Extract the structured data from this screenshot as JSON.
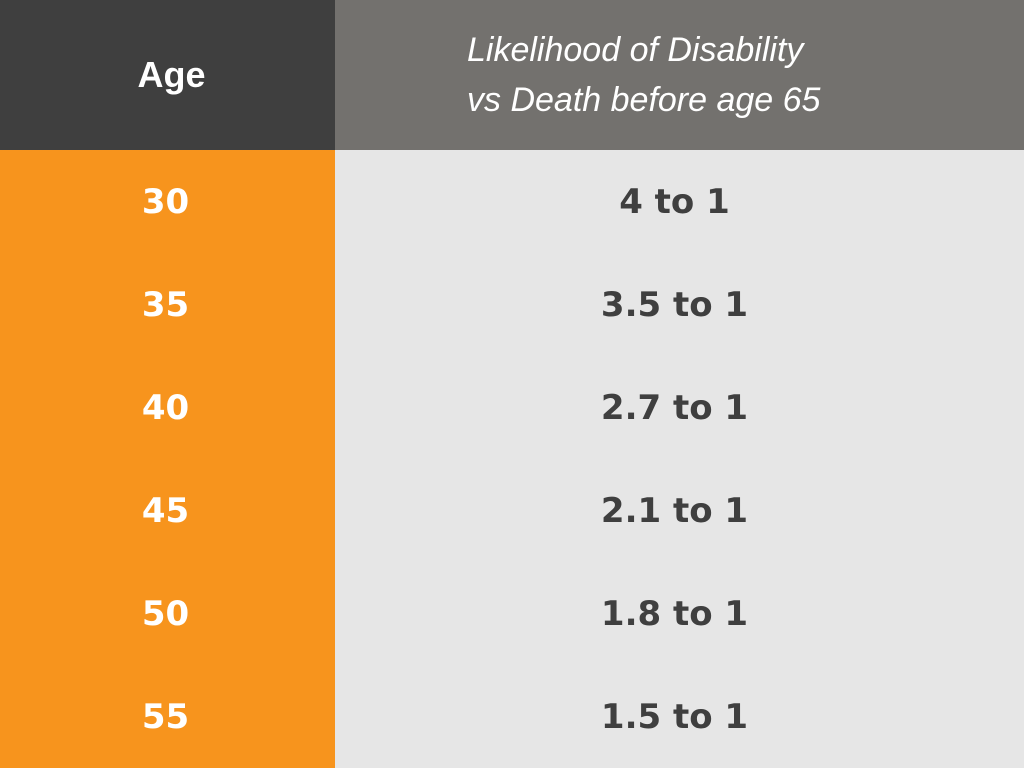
{
  "header": {
    "age_label": "Age",
    "likelihood_line1": "Likelihood of Disability",
    "likelihood_line2": "vs Death before age 65"
  },
  "rows": [
    {
      "age": "30",
      "ratio": "4 to 1"
    },
    {
      "age": "35",
      "ratio": "3.5 to 1"
    },
    {
      "age": "40",
      "ratio": "2.7 to 1"
    },
    {
      "age": "45",
      "ratio": "2.1 to 1"
    },
    {
      "age": "50",
      "ratio": "1.8 to 1"
    },
    {
      "age": "55",
      "ratio": "1.5 to 1"
    }
  ],
  "colors": {
    "age_header_bg": "#3f3f3f",
    "likelihood_header_bg": "#73716e",
    "age_column_bg": "#f7941d",
    "ratio_column_bg": "#e6e6e6",
    "ratio_text": "#3f3f3f",
    "header_text": "#ffffff"
  }
}
